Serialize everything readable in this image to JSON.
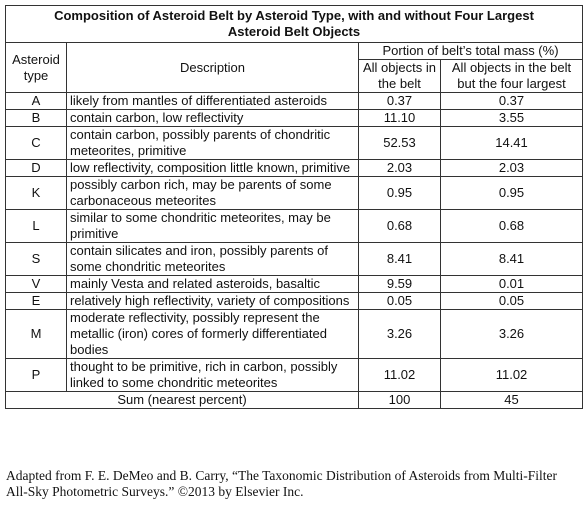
{
  "table": {
    "title": "Composition of Asteroid Belt by Asteroid Type, with and without Four Largest Asteroid Belt Objects",
    "header": {
      "type": "Asteroid type",
      "description": "Description",
      "portion": "Portion of belt’s total mass (%)",
      "all": "All objects in the belt",
      "without": "All objects in the belt but the four largest"
    },
    "rows": [
      [
        "A",
        "likely from mantles of differentiated asteroids",
        "0.37",
        "0.37"
      ],
      [
        "B",
        "contain carbon, low reflectivity",
        "11.10",
        "3.55"
      ],
      [
        "C",
        "contain carbon, possibly parents of chondritic meteorites, primitive",
        "52.53",
        "14.41"
      ],
      [
        "D",
        "low reflectivity, composition little known, primitive",
        "2.03",
        "2.03"
      ],
      [
        "K",
        "possibly carbon rich, may be parents of some carbonaceous meteorites",
        "0.95",
        "0.95"
      ],
      [
        "L",
        "similar to some chondritic meteorites, may be primitive",
        "0.68",
        "0.68"
      ],
      [
        "S",
        "contain silicates and iron, possibly parents of some chondritic meteorites",
        "8.41",
        "8.41"
      ],
      [
        "V",
        "mainly Vesta and related asteroids, basaltic",
        "9.59",
        "0.01"
      ],
      [
        "E",
        "relatively high reflectivity, variety of compositions",
        "0.05",
        "0.05"
      ],
      [
        "M",
        "moderate reflectivity, possibly represent the metallic (iron) cores of formerly differentiated bodies",
        "3.26",
        "3.26"
      ],
      [
        "P",
        "thought to be primitive, rich in carbon, possibly linked to some chondritic meteorites",
        "11.02",
        "11.02"
      ]
    ],
    "sum": [
      "Sum (nearest percent)",
      "100",
      "45"
    ]
  },
  "caption": "Adapted from F. E. DeMeo and B. Carry, “The Taxonomic Distribution of Asteroids from Multi-Filter All-Sky Photometric Surveys.” ©2013 by Elsevier Inc."
}
